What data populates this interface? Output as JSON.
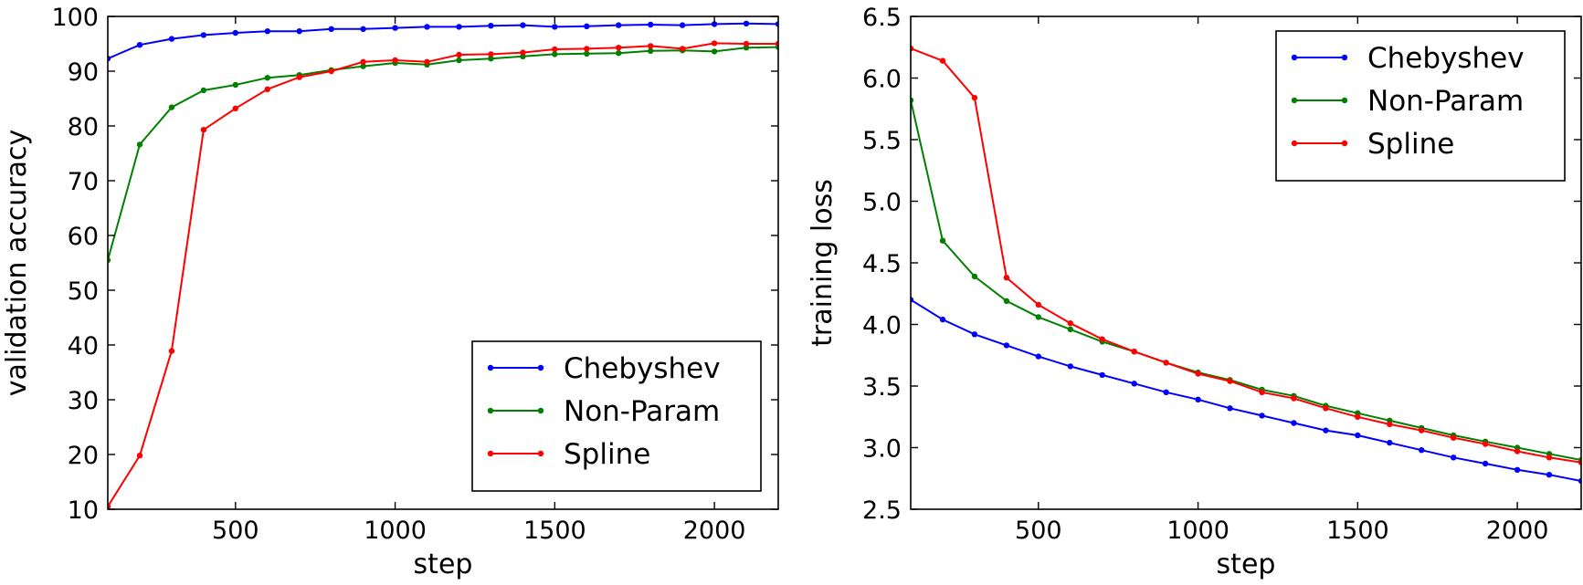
{
  "chart_data": [
    {
      "type": "line",
      "xlabel": "step",
      "ylabel": "validation accuracy",
      "xlim": [
        100,
        2200
      ],
      "ylim": [
        10,
        100
      ],
      "xticks": [
        500,
        1000,
        1500,
        2000
      ],
      "yticks": [
        10,
        20,
        30,
        40,
        50,
        60,
        70,
        80,
        90,
        100
      ],
      "grid": false,
      "legend_position": "lower-right",
      "x": [
        100,
        200,
        300,
        400,
        500,
        600,
        700,
        800,
        900,
        1000,
        1100,
        1200,
        1300,
        1400,
        1500,
        1600,
        1700,
        1800,
        1900,
        2000,
        2100,
        2200
      ],
      "series": [
        {
          "name": "Chebyshev",
          "color": "#0000ff",
          "values": [
            92.3,
            94.8,
            95.9,
            96.6,
            97.0,
            97.3,
            97.3,
            97.7,
            97.7,
            97.9,
            98.1,
            98.1,
            98.3,
            98.4,
            98.1,
            98.2,
            98.4,
            98.5,
            98.4,
            98.6,
            98.7,
            98.6
          ]
        },
        {
          "name": "Non-Param",
          "color": "#008000",
          "values": [
            55.5,
            76.6,
            83.4,
            86.5,
            87.5,
            88.8,
            89.3,
            90.2,
            90.9,
            91.5,
            91.2,
            92.0,
            92.3,
            92.7,
            93.1,
            93.2,
            93.3,
            93.7,
            93.8,
            93.6,
            94.3,
            94.4
          ]
        },
        {
          "name": "Spline",
          "color": "#ff0000",
          "values": [
            10.5,
            19.8,
            38.9,
            79.3,
            83.2,
            86.7,
            88.9,
            90.0,
            91.7,
            92.0,
            91.7,
            93.0,
            93.1,
            93.4,
            94.0,
            94.1,
            94.3,
            94.6,
            94.1,
            95.1,
            95.0,
            95.0
          ]
        }
      ]
    },
    {
      "type": "line",
      "xlabel": "step",
      "ylabel": "training loss",
      "xlim": [
        100,
        2200
      ],
      "ylim": [
        2.5,
        6.5
      ],
      "xticks": [
        500,
        1000,
        1500,
        2000
      ],
      "yticks": [
        2.5,
        3.0,
        3.5,
        4.0,
        4.5,
        5.0,
        5.5,
        6.0,
        6.5
      ],
      "grid": false,
      "legend_position": "upper-right",
      "x": [
        100,
        200,
        300,
        400,
        500,
        600,
        700,
        800,
        900,
        1000,
        1100,
        1200,
        1300,
        1400,
        1500,
        1600,
        1700,
        1800,
        1900,
        2000,
        2100,
        2200
      ],
      "series": [
        {
          "name": "Chebyshev",
          "color": "#0000ff",
          "values": [
            4.2,
            4.04,
            3.92,
            3.83,
            3.74,
            3.66,
            3.59,
            3.52,
            3.45,
            3.39,
            3.32,
            3.26,
            3.2,
            3.14,
            3.1,
            3.04,
            2.98,
            2.92,
            2.87,
            2.82,
            2.78,
            2.73
          ]
        },
        {
          "name": "Non-Param",
          "color": "#008000",
          "values": [
            5.82,
            4.68,
            4.39,
            4.19,
            4.06,
            3.96,
            3.86,
            3.78,
            3.69,
            3.61,
            3.55,
            3.47,
            3.42,
            3.34,
            3.28,
            3.22,
            3.16,
            3.1,
            3.05,
            3.0,
            2.95,
            2.9
          ]
        },
        {
          "name": "Spline",
          "color": "#ff0000",
          "values": [
            6.24,
            6.14,
            5.84,
            4.38,
            4.16,
            4.01,
            3.88,
            3.78,
            3.69,
            3.6,
            3.54,
            3.45,
            3.4,
            3.32,
            3.25,
            3.19,
            3.14,
            3.08,
            3.03,
            2.97,
            2.92,
            2.88
          ]
        }
      ]
    }
  ]
}
